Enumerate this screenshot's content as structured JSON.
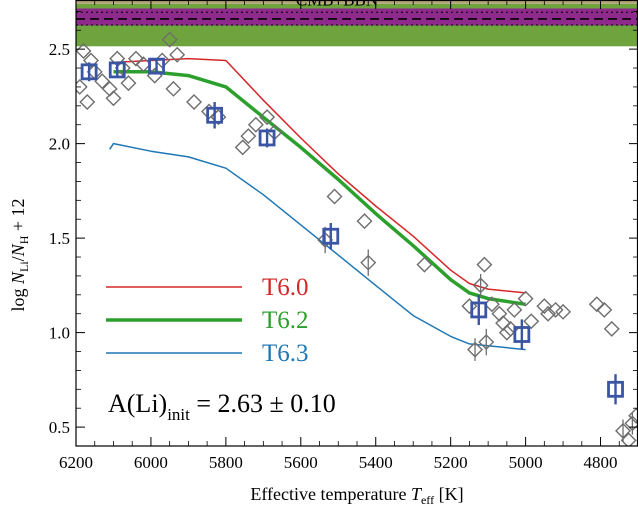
{
  "chart_data": {
    "type": "line",
    "xlabel": "Effective temperature T_eff [K]",
    "xlabel_parts": {
      "main": "Effective temperature ",
      "sym": "T",
      "sub": "eff",
      "unit": " [K]"
    },
    "ylabel_parts": {
      "log": "log ",
      "n1": "N",
      "s1": "Li",
      "slash": "/",
      "n2": "N",
      "s2": "H",
      "tail": " + 12"
    },
    "x_reversed": true,
    "xlim": [
      6200,
      4700
    ],
    "ylim": [
      0.4,
      2.76
    ],
    "x_ticks": [
      6200,
      6000,
      5800,
      5600,
      5400,
      5200,
      5000,
      4800
    ],
    "x_tick_labels": [
      "6200",
      "6000",
      "5800",
      "5600",
      "5400",
      "5200",
      "5000",
      "4800"
    ],
    "y_ticks": [
      0.5,
      1.0,
      1.5,
      2.0,
      2.5
    ],
    "y_tick_labels": [
      "0.5",
      "1.0",
      "1.5",
      "2.0",
      "2.5"
    ],
    "bands": [
      {
        "label": "",
        "y0": 2.515,
        "y1": 2.74,
        "color": "#6fa33d"
      },
      {
        "label": "",
        "y0": 2.625,
        "y1": 2.715,
        "color": "#8e2a8c"
      }
    ],
    "band_text": "CMB+BBN",
    "band_lines": [
      {
        "y": 2.66,
        "style": "dashed"
      },
      {
        "y": 2.695,
        "style": "dotted"
      },
      {
        "y": 2.628,
        "style": "dotted"
      }
    ],
    "series": [
      {
        "name": "T6.0",
        "color": "#d62728",
        "width": 1.5,
        "x": [
          6100,
          6000,
          5900,
          5800,
          5700,
          5600,
          5500,
          5400,
          5300,
          5200,
          5150,
          5100,
          5000
        ],
        "y": [
          2.43,
          2.44,
          2.45,
          2.44,
          2.23,
          2.03,
          1.84,
          1.67,
          1.51,
          1.33,
          1.26,
          1.23,
          1.21
        ]
      },
      {
        "name": "T6.2",
        "color": "#2ca02c",
        "width": 3.5,
        "x": [
          6100,
          6000,
          5900,
          5800,
          5700,
          5600,
          5500,
          5400,
          5300,
          5200,
          5150,
          5100,
          5000
        ],
        "y": [
          2.38,
          2.38,
          2.36,
          2.3,
          2.14,
          1.98,
          1.81,
          1.63,
          1.46,
          1.28,
          1.21,
          1.18,
          1.15
        ]
      },
      {
        "name": "T6.3",
        "color": "#1f77b4",
        "width": 1.5,
        "x": [
          6110,
          6100,
          6000,
          5900,
          5800,
          5700,
          5600,
          5500,
          5400,
          5300,
          5200,
          5150,
          5100,
          5000
        ],
        "y": [
          1.97,
          2.0,
          1.96,
          1.93,
          1.87,
          1.73,
          1.57,
          1.41,
          1.25,
          1.09,
          0.98,
          0.94,
          0.93,
          0.91
        ]
      }
    ],
    "stars": [
      {
        "x": 6180,
        "y": 2.49,
        "err": 0
      },
      {
        "x": 6160,
        "y": 2.44,
        "err": 0
      },
      {
        "x": 6190,
        "y": 2.3,
        "err": 0
      },
      {
        "x": 6170,
        "y": 2.22,
        "err": 0
      },
      {
        "x": 6150,
        "y": 2.38,
        "err": 0
      },
      {
        "x": 6130,
        "y": 2.33,
        "err": 0
      },
      {
        "x": 6110,
        "y": 2.29,
        "err": 0
      },
      {
        "x": 6100,
        "y": 2.24,
        "err": 0
      },
      {
        "x": 6090,
        "y": 2.45,
        "err": 0
      },
      {
        "x": 6075,
        "y": 2.4,
        "err": 0
      },
      {
        "x": 6060,
        "y": 2.32,
        "err": 0
      },
      {
        "x": 6040,
        "y": 2.45,
        "err": 0
      },
      {
        "x": 6020,
        "y": 2.42,
        "err": 0
      },
      {
        "x": 5990,
        "y": 2.36,
        "err": 0
      },
      {
        "x": 5970,
        "y": 2.44,
        "err": 0
      },
      {
        "x": 5950,
        "y": 2.55,
        "err": 0
      },
      {
        "x": 5930,
        "y": 2.47,
        "err": 0
      },
      {
        "x": 5940,
        "y": 2.29,
        "err": 0
      },
      {
        "x": 5885,
        "y": 2.22,
        "err": 0
      },
      {
        "x": 5845,
        "y": 2.17,
        "err": 0
      },
      {
        "x": 5820,
        "y": 2.14,
        "err": 0
      },
      {
        "x": 5755,
        "y": 1.98,
        "err": 0
      },
      {
        "x": 5740,
        "y": 2.04,
        "err": 0
      },
      {
        "x": 5720,
        "y": 2.1,
        "err": 0
      },
      {
        "x": 5690,
        "y": 2.14,
        "err": 0
      },
      {
        "x": 5670,
        "y": 2.06,
        "err": 0
      },
      {
        "x": 5535,
        "y": 1.49,
        "err": 0.07
      },
      {
        "x": 5510,
        "y": 1.72,
        "err": 0
      },
      {
        "x": 5430,
        "y": 1.59,
        "err": 0
      },
      {
        "x": 5420,
        "y": 1.37,
        "err": 0.07
      },
      {
        "x": 5270,
        "y": 1.36,
        "err": 0
      },
      {
        "x": 5150,
        "y": 1.14,
        "err": 0
      },
      {
        "x": 5135,
        "y": 0.91,
        "err": 0.06
      },
      {
        "x": 5120,
        "y": 1.25,
        "err": 0.06
      },
      {
        "x": 5110,
        "y": 1.36,
        "err": 0
      },
      {
        "x": 5105,
        "y": 0.95,
        "err": 0.07
      },
      {
        "x": 5090,
        "y": 1.15,
        "err": 0
      },
      {
        "x": 5070,
        "y": 1.1,
        "err": 0
      },
      {
        "x": 5060,
        "y": 1.05,
        "err": 0
      },
      {
        "x": 5050,
        "y": 1.0,
        "err": 0
      },
      {
        "x": 5040,
        "y": 1.02,
        "err": 0
      },
      {
        "x": 5030,
        "y": 1.12,
        "err": 0
      },
      {
        "x": 5000,
        "y": 1.18,
        "err": 0
      },
      {
        "x": 4985,
        "y": 1.06,
        "err": 0
      },
      {
        "x": 4950,
        "y": 1.14,
        "err": 0
      },
      {
        "x": 4940,
        "y": 1.1,
        "err": 0
      },
      {
        "x": 4920,
        "y": 1.12,
        "err": 0
      },
      {
        "x": 4900,
        "y": 1.11,
        "err": 0
      },
      {
        "x": 4810,
        "y": 1.15,
        "err": 0
      },
      {
        "x": 4790,
        "y": 1.12,
        "err": 0
      },
      {
        "x": 4770,
        "y": 1.02,
        "err": 0
      },
      {
        "x": 4740,
        "y": 0.48,
        "err": 0.06
      },
      {
        "x": 4725,
        "y": 0.43,
        "err": 0
      },
      {
        "x": 4715,
        "y": 0.52,
        "err": 0.06
      },
      {
        "x": 4705,
        "y": 0.56,
        "err": 0
      }
    ],
    "binned": [
      {
        "x": 6165,
        "y": 2.38,
        "err": 0.05
      },
      {
        "x": 6090,
        "y": 2.39,
        "err": 0.04
      },
      {
        "x": 5985,
        "y": 2.41,
        "err": 0.04
      },
      {
        "x": 5830,
        "y": 2.15,
        "err": 0.07
      },
      {
        "x": 5690,
        "y": 2.03,
        "err": 0.05
      },
      {
        "x": 5520,
        "y": 1.51,
        "err": 0.07
      },
      {
        "x": 5125,
        "y": 1.12,
        "err": 0.08
      },
      {
        "x": 5010,
        "y": 0.99,
        "err": 0.08
      },
      {
        "x": 4760,
        "y": 0.7,
        "err": 0.08
      }
    ],
    "annotation": {
      "prefix": "A(Li)",
      "sub": "init",
      "suffix": " = 2.63 ± 0.10"
    },
    "legend_placement": "lower-left",
    "grid": false,
    "colors": {
      "binned_marker": "#3a55a4",
      "star_marker": "#6e6e6e"
    }
  }
}
